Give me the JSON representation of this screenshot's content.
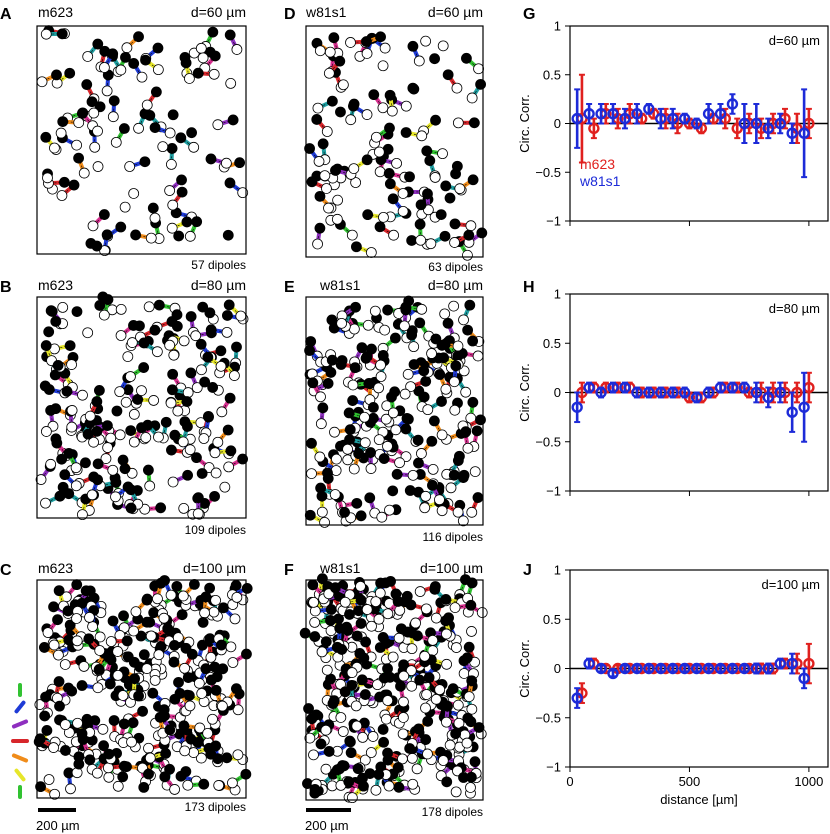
{
  "figure": {
    "scale_bar_label": "200 µm",
    "orientation_legend_colors": [
      "#31c231",
      "#1f3bd6",
      "#8e2fbf",
      "#d7262b",
      "#f08c1a",
      "#e6e62a",
      "#31c231"
    ]
  },
  "panels": [
    {
      "letter": "A",
      "name": "m623",
      "d": "d=60 µm",
      "dipoles": "57 dipoles",
      "seed": 11,
      "count": 57
    },
    {
      "letter": "D",
      "name": "w81s1",
      "d": "d=60 µm",
      "dipoles": "63 dipoles",
      "seed": 23,
      "count": 63
    },
    {
      "letter": "B",
      "name": "m623",
      "d": "d=80 µm",
      "dipoles": "109 dipoles",
      "seed": 37,
      "count": 109
    },
    {
      "letter": "E",
      "name": "w81s1",
      "d": "d=80 µm",
      "dipoles": "116 dipoles",
      "seed": 41,
      "count": 116
    },
    {
      "letter": "C",
      "name": "m623",
      "d": "d=100 µm",
      "dipoles": "173 dipoles",
      "seed": 53,
      "count": 173
    },
    {
      "letter": "F",
      "name": "w81s1",
      "d": "d=100 µm",
      "dipoles": "178 dipoles",
      "seed": 67,
      "count": 178
    }
  ],
  "chart_data": [
    {
      "type": "scatter",
      "panel": "G",
      "annotation": "d=60 µm",
      "ylabel": "Circ. Corr.",
      "xlabel": "",
      "xlim": [
        0,
        1080
      ],
      "ylim": [
        -1,
        1
      ],
      "yticks": [
        -1,
        -0.5,
        0,
        0.5,
        1
      ],
      "ytick_labels": [
        "−1",
        "−0.5",
        "0",
        "0.5",
        "1"
      ],
      "xticks": [
        0,
        500,
        1000
      ],
      "xtick_labels": [
        "",
        "",
        ""
      ],
      "legend": [
        "m623",
        "w81s1"
      ],
      "series": [
        {
          "name": "m623",
          "color": "#e0201e",
          "x": [
            50,
            100,
            150,
            200,
            250,
            300,
            350,
            400,
            450,
            500,
            550,
            600,
            650,
            700,
            750,
            800,
            850,
            900,
            950,
            1000
          ],
          "y": [
            0.05,
            -0.05,
            0.1,
            0.05,
            0.1,
            0.05,
            0.1,
            0.05,
            0.0,
            0.0,
            -0.05,
            0.05,
            0.05,
            -0.05,
            0.0,
            -0.05,
            0.0,
            0.05,
            -0.05,
            0.0
          ],
          "err": [
            0.45,
            0.1,
            0.1,
            0.1,
            0.1,
            0.05,
            0.05,
            0.1,
            0.1,
            0.05,
            0.05,
            0.05,
            0.1,
            0.1,
            0.1,
            0.1,
            0.1,
            0.1,
            0.15,
            0.15
          ]
        },
        {
          "name": "w81s1",
          "color": "#1d2bd8",
          "x": [
            30,
            80,
            130,
            180,
            230,
            280,
            330,
            380,
            430,
            480,
            530,
            580,
            630,
            680,
            730,
            780,
            830,
            880,
            930,
            980
          ],
          "y": [
            0.05,
            0.1,
            0.1,
            0.1,
            0.05,
            0.1,
            0.15,
            0.05,
            0.05,
            0.05,
            0.0,
            0.1,
            0.1,
            0.2,
            0.0,
            0.0,
            -0.05,
            0.0,
            -0.1,
            -0.1
          ],
          "err": [
            0.3,
            0.1,
            0.1,
            0.1,
            0.1,
            0.1,
            0.05,
            0.1,
            0.1,
            0.05,
            0.05,
            0.1,
            0.1,
            0.1,
            0.2,
            0.2,
            0.1,
            0.1,
            0.1,
            0.45
          ]
        }
      ]
    },
    {
      "type": "scatter",
      "panel": "H",
      "annotation": "d=80 µm",
      "ylabel": "Circ. Corr.",
      "xlabel": "",
      "xlim": [
        0,
        1080
      ],
      "ylim": [
        -1,
        1
      ],
      "yticks": [
        -1,
        -0.5,
        0,
        0.5,
        1
      ],
      "ytick_labels": [
        "−1",
        "−0.5",
        "0",
        "0.5",
        "1"
      ],
      "xticks": [
        0,
        500,
        1000
      ],
      "xtick_labels": [
        "",
        "",
        ""
      ],
      "series": [
        {
          "name": "m623",
          "color": "#e0201e",
          "x": [
            50,
            100,
            150,
            200,
            250,
            300,
            350,
            400,
            450,
            500,
            550,
            600,
            650,
            700,
            750,
            800,
            850,
            900,
            950,
            1000
          ],
          "y": [
            0.0,
            0.05,
            0.05,
            0.05,
            0.05,
            0.0,
            0.0,
            0.0,
            0.0,
            -0.05,
            -0.05,
            0.0,
            0.05,
            0.05,
            0.0,
            0.0,
            0.0,
            0.0,
            0.0,
            0.05
          ],
          "err": [
            0.1,
            0.05,
            0.05,
            0.05,
            0.05,
            0.05,
            0.05,
            0.05,
            0.05,
            0.05,
            0.05,
            0.05,
            0.05,
            0.05,
            0.05,
            0.1,
            0.1,
            0.1,
            0.1,
            0.15
          ]
        },
        {
          "name": "w81s1",
          "color": "#1d2bd8",
          "x": [
            30,
            80,
            130,
            180,
            230,
            280,
            330,
            380,
            430,
            480,
            530,
            580,
            630,
            680,
            730,
            780,
            830,
            880,
            930,
            980
          ],
          "y": [
            -0.15,
            0.05,
            0.0,
            0.05,
            0.05,
            0.0,
            0.0,
            0.0,
            0.0,
            0.0,
            -0.05,
            0.0,
            0.05,
            0.05,
            0.05,
            0.0,
            -0.05,
            0.0,
            -0.2,
            -0.15
          ],
          "err": [
            0.15,
            0.05,
            0.05,
            0.05,
            0.05,
            0.05,
            0.05,
            0.05,
            0.05,
            0.05,
            0.05,
            0.05,
            0.05,
            0.05,
            0.05,
            0.1,
            0.1,
            0.1,
            0.2,
            0.35
          ]
        }
      ]
    },
    {
      "type": "scatter",
      "panel": "J",
      "annotation": "d=100 µm",
      "ylabel": "Circ. Corr.",
      "xlabel": "distance [µm]",
      "xlim": [
        0,
        1080
      ],
      "ylim": [
        -1,
        1
      ],
      "yticks": [
        -1,
        -0.5,
        0,
        0.5,
        1
      ],
      "ytick_labels": [
        "−1",
        "−0.5",
        "0",
        "0.5",
        "1"
      ],
      "xticks": [
        0,
        500,
        1000
      ],
      "xtick_labels": [
        "0",
        "500",
        "1000"
      ],
      "series": [
        {
          "name": "m623",
          "color": "#e0201e",
          "x": [
            50,
            100,
            150,
            200,
            250,
            300,
            350,
            400,
            450,
            500,
            550,
            600,
            650,
            700,
            750,
            800,
            850,
            900,
            950,
            1000
          ],
          "y": [
            -0.25,
            0.05,
            0.0,
            0.0,
            0.0,
            0.0,
            0.0,
            0.0,
            0.0,
            0.0,
            0.0,
            0.0,
            0.0,
            0.0,
            0.0,
            0.0,
            0.0,
            0.05,
            0.05,
            0.05
          ],
          "err": [
            0.1,
            0.05,
            0.03,
            0.03,
            0.03,
            0.03,
            0.03,
            0.03,
            0.03,
            0.03,
            0.03,
            0.03,
            0.03,
            0.03,
            0.03,
            0.05,
            0.05,
            0.05,
            0.1,
            0.2
          ]
        },
        {
          "name": "w81s1",
          "color": "#1d2bd8",
          "x": [
            30,
            80,
            130,
            180,
            230,
            280,
            330,
            380,
            430,
            480,
            530,
            580,
            630,
            680,
            730,
            780,
            830,
            880,
            930,
            980
          ],
          "y": [
            -0.3,
            0.05,
            0.0,
            -0.05,
            0.0,
            0.0,
            0.0,
            0.0,
            0.0,
            0.0,
            0.0,
            0.0,
            0.0,
            0.0,
            0.0,
            0.0,
            0.0,
            0.05,
            0.05,
            -0.1
          ],
          "err": [
            0.1,
            0.05,
            0.03,
            0.03,
            0.03,
            0.03,
            0.03,
            0.03,
            0.03,
            0.03,
            0.03,
            0.03,
            0.03,
            0.03,
            0.03,
            0.05,
            0.05,
            0.05,
            0.1,
            0.1
          ]
        }
      ]
    }
  ]
}
